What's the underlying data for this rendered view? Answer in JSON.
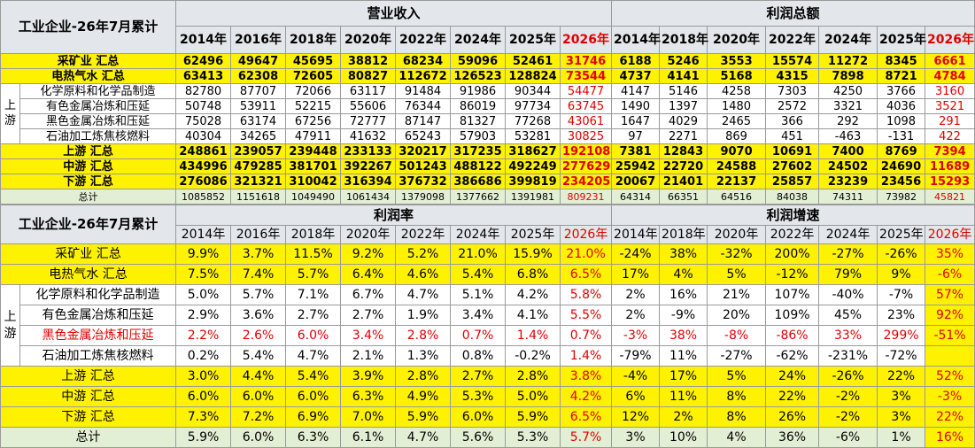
{
  "top": {
    "title": "工业企业-26年7月累计",
    "group1": "营业收入",
    "group2": "利润总额",
    "years1": [
      "2014年",
      "2016年",
      "2018年",
      "2020年",
      "2022年",
      "2024年",
      "2025年",
      "2026年"
    ],
    "years2": [
      "2014年",
      "2018年",
      "2020年",
      "2022年",
      "2024年",
      "2025年",
      "2026年"
    ],
    "side": "上游",
    "rows": [
      {
        "label": "采矿业 汇总",
        "v1": [
          "62496",
          "49647",
          "45695",
          "38812",
          "68234",
          "59096",
          "52461",
          "31746"
        ],
        "v2": [
          "6188",
          "5246",
          "3553",
          "15574",
          "11272",
          "8345",
          "6661"
        ]
      },
      {
        "label": "电热气水 汇总",
        "v1": [
          "63413",
          "62308",
          "72605",
          "80827",
          "112672",
          "126523",
          "128824",
          "73544"
        ],
        "v2": [
          "4737",
          "4141",
          "5168",
          "4315",
          "7898",
          "8721",
          "4784"
        ]
      },
      {
        "label": "化学原料和化学品制造",
        "v1": [
          "82780",
          "87707",
          "72066",
          "63117",
          "91484",
          "91986",
          "90344",
          "54477"
        ],
        "v2": [
          "4147",
          "5146",
          "4258",
          "7303",
          "4250",
          "3766",
          "3160"
        ]
      },
      {
        "label": "有色金属冶炼和压延",
        "v1": [
          "50748",
          "53911",
          "52215",
          "55606",
          "76344",
          "86019",
          "97734",
          "63745"
        ],
        "v2": [
          "1490",
          "1397",
          "1480",
          "2572",
          "3321",
          "4036",
          "3521"
        ]
      },
      {
        "label": "黑色金属冶炼和压延",
        "v1": [
          "75028",
          "63174",
          "67256",
          "72777",
          "87147",
          "81327",
          "77268",
          "43061"
        ],
        "v2": [
          "1647",
          "4029",
          "2465",
          "366",
          "292",
          "1098",
          "291"
        ]
      },
      {
        "label": "石油加工炼焦核燃料",
        "v1": [
          "40304",
          "34265",
          "47911",
          "41632",
          "65243",
          "57903",
          "53281",
          "30825"
        ],
        "v2": [
          "97",
          "2271",
          "869",
          "451",
          "-463",
          "-131",
          "422"
        ]
      },
      {
        "label": "上游 汇总",
        "v1": [
          "248861",
          "239057",
          "239448",
          "233133",
          "320217",
          "317235",
          "318627",
          "192108"
        ],
        "v2": [
          "7381",
          "12843",
          "9070",
          "10691",
          "7400",
          "8769",
          "7394"
        ]
      },
      {
        "label": "中游 汇总",
        "v1": [
          "434996",
          "479285",
          "381701",
          "392267",
          "501243",
          "488122",
          "492249",
          "277629"
        ],
        "v2": [
          "25942",
          "22720",
          "24588",
          "27602",
          "24502",
          "24690",
          "11689"
        ]
      },
      {
        "label": "下游 汇总",
        "v1": [
          "276086",
          "321321",
          "310042",
          "316394",
          "376732",
          "386686",
          "399819",
          "234205"
        ],
        "v2": [
          "20067",
          "21401",
          "22137",
          "25857",
          "23239",
          "23456",
          "15293"
        ]
      },
      {
        "label": "总计",
        "v1": [
          "1085852",
          "1151618",
          "1049490",
          "1061434",
          "1379098",
          "1377662",
          "1391981",
          "809231"
        ],
        "v2": [
          "64314",
          "66351",
          "64516",
          "84038",
          "74311",
          "73982",
          "45821"
        ]
      }
    ]
  },
  "bottom": {
    "title": "工业企业-26年7月累计",
    "group1": "利润率",
    "group2": "利润增速",
    "years1": [
      "2014年",
      "2016年",
      "2018年",
      "2020年",
      "2022年",
      "2024年",
      "2025年",
      "2026年"
    ],
    "years2": [
      "2014年",
      "2018年",
      "2020年",
      "2022年",
      "2024年",
      "2025年",
      "2026年"
    ],
    "side": "上游",
    "rows": [
      {
        "label": "采矿业 汇总",
        "v1": [
          "9.9%",
          "3.7%",
          "11.5%",
          "9.2%",
          "5.2%",
          "21.0%",
          "15.9%",
          "21.0%"
        ],
        "v2": [
          "-24%",
          "38%",
          "-32%",
          "200%",
          "-27%",
          "-26%",
          "35%"
        ]
      },
      {
        "label": "电热气水 汇总",
        "v1": [
          "7.5%",
          "7.4%",
          "5.7%",
          "6.4%",
          "4.6%",
          "5.4%",
          "6.8%",
          "6.5%"
        ],
        "v2": [
          "17%",
          "4%",
          "5%",
          "-12%",
          "79%",
          "9%",
          "-6%"
        ]
      },
      {
        "label": "化学原料和化学品制造",
        "v1": [
          "5.0%",
          "5.7%",
          "7.1%",
          "6.7%",
          "4.7%",
          "5.1%",
          "4.2%",
          "5.8%"
        ],
        "v2": [
          "2%",
          "16%",
          "21%",
          "107%",
          "-40%",
          "-7%",
          "57%"
        ]
      },
      {
        "label": "有色金属冶炼和压延",
        "v1": [
          "2.9%",
          "3.6%",
          "2.7%",
          "2.7%",
          "1.9%",
          "3.4%",
          "4.1%",
          "5.5%"
        ],
        "v2": [
          "2%",
          "-9%",
          "20%",
          "109%",
          "45%",
          "23%",
          "92%"
        ]
      },
      {
        "label": "黑色金属冶炼和压延",
        "v1": [
          "2.2%",
          "2.6%",
          "6.0%",
          "3.4%",
          "2.8%",
          "0.7%",
          "1.4%",
          "0.7%"
        ],
        "v2": [
          "-3%",
          "38%",
          "-8%",
          "-86%",
          "33%",
          "299%",
          "-51%"
        ]
      },
      {
        "label": "石油加工炼焦核燃料",
        "v1": [
          "0.2%",
          "5.4%",
          "4.7%",
          "2.1%",
          "1.3%",
          "0.8%",
          "-0.2%",
          "1.4%"
        ],
        "v2": [
          "-79%",
          "11%",
          "-27%",
          "-62%",
          "-231%",
          "-72%",
          ""
        ]
      },
      {
        "label": "上游 汇总",
        "v1": [
          "3.0%",
          "4.4%",
          "5.4%",
          "3.9%",
          "2.8%",
          "2.7%",
          "2.8%",
          "3.8%"
        ],
        "v2": [
          "-4%",
          "17%",
          "5%",
          "24%",
          "-26%",
          "22%",
          "52%"
        ]
      },
      {
        "label": "中游 汇总",
        "v1": [
          "6.0%",
          "6.0%",
          "6.0%",
          "6.3%",
          "4.9%",
          "5.3%",
          "5.0%",
          "4.2%"
        ],
        "v2": [
          "6%",
          "11%",
          "8%",
          "22%",
          "-2%",
          "3%",
          "-3%"
        ]
      },
      {
        "label": "下游 汇总",
        "v1": [
          "7.3%",
          "7.2%",
          "6.9%",
          "7.0%",
          "5.9%",
          "6.0%",
          "5.9%",
          "6.5%"
        ],
        "v2": [
          "12%",
          "2%",
          "8%",
          "26%",
          "-2%",
          "3%",
          "22%"
        ]
      },
      {
        "label": "总计",
        "v1": [
          "5.9%",
          "6.0%",
          "6.3%",
          "6.1%",
          "4.7%",
          "5.6%",
          "5.3%",
          "5.7%"
        ],
        "v2": [
          "3%",
          "10%",
          "4%",
          "36%",
          "-6%",
          "1%",
          "16%"
        ]
      }
    ]
  },
  "colors": {
    "yellow": "#fff200",
    "header_grey": "#e3e6ea",
    "total_green": "#e3efd4",
    "red": "#e00000"
  }
}
